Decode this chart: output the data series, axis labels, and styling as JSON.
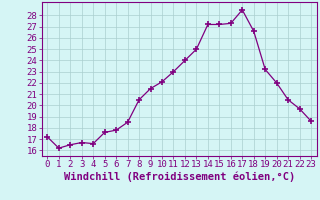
{
  "x": [
    0,
    1,
    2,
    3,
    4,
    5,
    6,
    7,
    8,
    9,
    10,
    11,
    12,
    13,
    14,
    15,
    16,
    17,
    18,
    19,
    20,
    21,
    22,
    23
  ],
  "y": [
    17.2,
    16.2,
    16.5,
    16.7,
    16.6,
    17.6,
    17.8,
    18.5,
    20.5,
    21.5,
    22.1,
    23.0,
    24.0,
    25.0,
    27.2,
    27.2,
    27.3,
    28.5,
    26.6,
    23.2,
    22.0,
    20.5,
    19.7,
    18.6
  ],
  "line_color": "#800080",
  "marker": "+",
  "marker_color": "#800080",
  "bg_color": "#d5f5f5",
  "grid_color": "#aacfcf",
  "xlabel": "Windchill (Refroidissement éolien,°C)",
  "ylim": [
    15.5,
    29.2
  ],
  "xlim": [
    -0.5,
    23.5
  ],
  "yticks": [
    16,
    17,
    18,
    19,
    20,
    21,
    22,
    23,
    24,
    25,
    26,
    27,
    28
  ],
  "xticks": [
    0,
    1,
    2,
    3,
    4,
    5,
    6,
    7,
    8,
    9,
    10,
    11,
    12,
    13,
    14,
    15,
    16,
    17,
    18,
    19,
    20,
    21,
    22,
    23
  ],
  "font_color": "#800080",
  "spine_color": "#800080",
  "label_fontsize": 7.5,
  "tick_fontsize": 6.5
}
